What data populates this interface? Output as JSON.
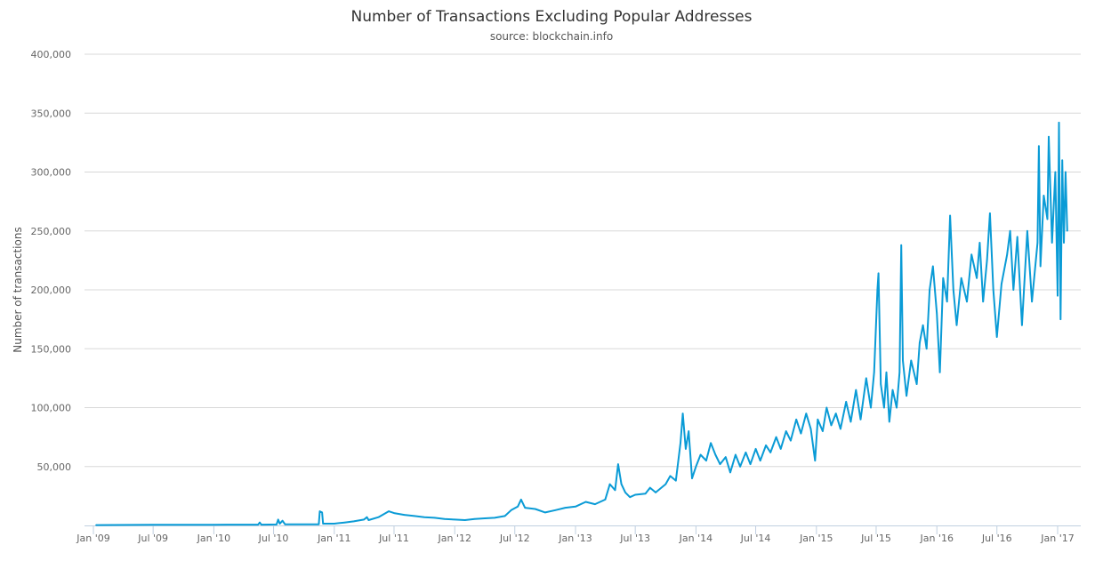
{
  "chart_data": {
    "type": "line",
    "title": "Number of Transactions Excluding Popular Addresses",
    "subtitle": "source: blockchain.info",
    "xlabel": "",
    "ylabel": "Number of transactions",
    "ylim": [
      0,
      400000
    ],
    "yticks": [
      0,
      50000,
      100000,
      150000,
      200000,
      250000,
      300000,
      350000,
      400000
    ],
    "ytick_labels": [
      "",
      "50,000",
      "100,000",
      "150,000",
      "200,000",
      "250,000",
      "300,000",
      "350,000",
      "400,000"
    ],
    "xticks": [
      "2009-01-01",
      "2009-07-01",
      "2010-01-01",
      "2010-07-01",
      "2011-01-01",
      "2011-07-01",
      "2012-01-01",
      "2012-07-01",
      "2013-01-01",
      "2013-07-01",
      "2014-01-01",
      "2014-07-01",
      "2015-01-01",
      "2015-07-01",
      "2016-01-01",
      "2016-07-01",
      "2017-01-01"
    ],
    "xtick_labels": [
      "Jan '09",
      "Jul '09",
      "Jan '10",
      "Jul '10",
      "Jan '11",
      "Jul '11",
      "Jan '12",
      "Jul '12",
      "Jan '13",
      "Jul '13",
      "Jan '14",
      "Jul '14",
      "Jan '15",
      "Jul '15",
      "Jan '16",
      "Jul '16",
      "Jan '17"
    ],
    "grid": true,
    "legend": "none",
    "color": "#0a9bd6",
    "series": [
      {
        "x": [
          "2009-01-09",
          "2009-07-01",
          "2010-01-01",
          "2010-05-15",
          "2010-05-20",
          "2010-05-25",
          "2010-07-10",
          "2010-07-15",
          "2010-07-20",
          "2010-07-28",
          "2010-08-05",
          "2010-11-15",
          "2010-11-18",
          "2010-11-25",
          "2010-11-28",
          "2011-01-01",
          "2011-02-01",
          "2011-03-01",
          "2011-04-01",
          "2011-04-10",
          "2011-04-15",
          "2011-05-15",
          "2011-06-15",
          "2011-07-01",
          "2011-08-01",
          "2011-09-01",
          "2011-10-01",
          "2011-11-01",
          "2011-12-01",
          "2012-01-01",
          "2012-02-01",
          "2012-03-01",
          "2012-04-01",
          "2012-05-01",
          "2012-06-01",
          "2012-06-20",
          "2012-07-10",
          "2012-07-20",
          "2012-08-01",
          "2012-09-01",
          "2012-10-01",
          "2012-11-01",
          "2012-12-01",
          "2013-01-01",
          "2013-02-01",
          "2013-03-01",
          "2013-04-01",
          "2013-04-15",
          "2013-05-01",
          "2013-05-10",
          "2013-05-20",
          "2013-06-01",
          "2013-06-15",
          "2013-07-01",
          "2013-08-01",
          "2013-08-15",
          "2013-09-01",
          "2013-10-01",
          "2013-10-15",
          "2013-11-01",
          "2013-11-15",
          "2013-11-22",
          "2013-12-01",
          "2013-12-10",
          "2013-12-20",
          "2014-01-01",
          "2014-01-15",
          "2014-02-01",
          "2014-02-15",
          "2014-03-01",
          "2014-03-15",
          "2014-04-01",
          "2014-04-15",
          "2014-05-01",
          "2014-05-15",
          "2014-06-01",
          "2014-06-15",
          "2014-07-01",
          "2014-07-15",
          "2014-08-01",
          "2014-08-15",
          "2014-09-01",
          "2014-09-15",
          "2014-10-01",
          "2014-10-15",
          "2014-11-01",
          "2014-11-15",
          "2014-12-01",
          "2014-12-15",
          "2014-12-28",
          "2015-01-05",
          "2015-01-20",
          "2015-02-01",
          "2015-02-15",
          "2015-03-01",
          "2015-03-15",
          "2015-04-01",
          "2015-04-15",
          "2015-05-01",
          "2015-05-15",
          "2015-06-01",
          "2015-06-15",
          "2015-06-25",
          "2015-07-05",
          "2015-07-08",
          "2015-07-15",
          "2015-07-25",
          "2015-08-01",
          "2015-08-10",
          "2015-08-20",
          "2015-09-01",
          "2015-09-10",
          "2015-09-15",
          "2015-09-20",
          "2015-10-01",
          "2015-10-15",
          "2015-11-01",
          "2015-11-10",
          "2015-11-20",
          "2015-12-01",
          "2015-12-10",
          "2015-12-20",
          "2016-01-01",
          "2016-01-10",
          "2016-01-20",
          "2016-02-01",
          "2016-02-10",
          "2016-02-20",
          "2016-03-01",
          "2016-03-15",
          "2016-04-01",
          "2016-04-15",
          "2016-05-01",
          "2016-05-10",
          "2016-05-20",
          "2016-06-01",
          "2016-06-10",
          "2016-06-20",
          "2016-07-01",
          "2016-07-15",
          "2016-08-01",
          "2016-08-10",
          "2016-08-20",
          "2016-09-01",
          "2016-09-15",
          "2016-10-01",
          "2016-10-15",
          "2016-11-01",
          "2016-11-05",
          "2016-11-10",
          "2016-11-20",
          "2016-12-01",
          "2016-12-05",
          "2016-12-15",
          "2016-12-25",
          "2017-01-01",
          "2017-01-05",
          "2017-01-10",
          "2017-01-15",
          "2017-01-20",
          "2017-01-25",
          "2017-01-30"
        ],
        "y": [
          300,
          500,
          600,
          700,
          2500,
          700,
          800,
          5000,
          1500,
          4000,
          900,
          1000,
          12000,
          11000,
          1500,
          1500,
          2500,
          3500,
          5000,
          7000,
          4500,
          7000,
          12000,
          10500,
          9000,
          8000,
          7000,
          6500,
          5500,
          5000,
          4500,
          5500,
          6000,
          6500,
          8000,
          13000,
          16000,
          22000,
          15000,
          14000,
          11000,
          13000,
          15000,
          16000,
          20000,
          18000,
          22000,
          35000,
          30000,
          52000,
          35000,
          28000,
          24000,
          26000,
          27000,
          32000,
          28000,
          35000,
          42000,
          38000,
          70000,
          95000,
          65000,
          80000,
          40000,
          50000,
          60000,
          55000,
          70000,
          60000,
          52000,
          58000,
          45000,
          60000,
          50000,
          62000,
          52000,
          65000,
          55000,
          68000,
          62000,
          75000,
          65000,
          80000,
          72000,
          90000,
          78000,
          95000,
          82000,
          55000,
          90000,
          80000,
          100000,
          85000,
          95000,
          82000,
          105000,
          88000,
          115000,
          90000,
          125000,
          100000,
          130000,
          200000,
          214000,
          120000,
          100000,
          130000,
          88000,
          115000,
          100000,
          130000,
          238000,
          140000,
          110000,
          140000,
          120000,
          155000,
          170000,
          150000,
          200000,
          220000,
          180000,
          130000,
          210000,
          190000,
          263000,
          200000,
          170000,
          210000,
          190000,
          230000,
          210000,
          240000,
          190000,
          225000,
          265000,
          200000,
          160000,
          205000,
          230000,
          250000,
          200000,
          245000,
          170000,
          250000,
          190000,
          240000,
          322000,
          220000,
          280000,
          260000,
          330000,
          240000,
          300000,
          195000,
          342000,
          175000,
          310000,
          240000,
          300000,
          250000
        ]
      }
    ]
  }
}
